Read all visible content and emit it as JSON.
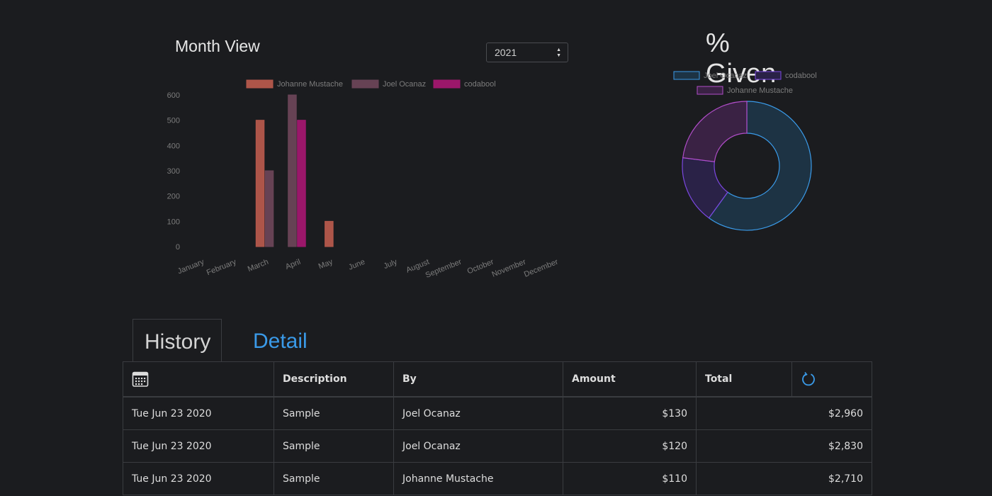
{
  "month_view": {
    "title": "Month View",
    "year_select": {
      "value": "2021"
    }
  },
  "given": {
    "title": "% Given"
  },
  "colors": {
    "background": "#1b1c1f",
    "accent": "#3a9ae8",
    "johanne": "#b5584c",
    "joel": "#6a4457",
    "codabool": "#a2176f"
  },
  "chart_data": [
    {
      "type": "bar",
      "categories": [
        "January",
        "February",
        "March",
        "April",
        "May",
        "June",
        "July",
        "August",
        "September",
        "October",
        "November",
        "December"
      ],
      "series": [
        {
          "name": "Johanne Mustache",
          "values": [
            0,
            0,
            500,
            0,
            100,
            0,
            0,
            0,
            0,
            0,
            0,
            0
          ]
        },
        {
          "name": "Joel Ocanaz",
          "values": [
            0,
            0,
            300,
            600,
            0,
            0,
            0,
            0,
            0,
            0,
            0,
            0
          ]
        },
        {
          "name": "codabool",
          "values": [
            0,
            0,
            0,
            500,
            0,
            0,
            0,
            0,
            0,
            0,
            0,
            0
          ]
        }
      ],
      "y_ticks": [
        0,
        100,
        200,
        300,
        400,
        500,
        600
      ],
      "ylim": [
        0,
        600
      ],
      "grid": false,
      "legend": "top"
    },
    {
      "type": "pie",
      "variant": "doughnut",
      "labels": [
        "Joel Ocanaz",
        "codabool",
        "Johanne Mustache"
      ],
      "values": [
        60,
        17,
        23
      ],
      "legend": "top"
    }
  ],
  "tabs": [
    {
      "label": "History",
      "active": true
    },
    {
      "label": "Detail",
      "active": false
    }
  ],
  "table": {
    "headers": [
      "",
      "Description",
      "By",
      "Amount",
      "Total",
      ""
    ],
    "header_icons": {
      "date": "calendar-icon",
      "refresh": "refresh-icon"
    },
    "rows": [
      {
        "date": "Tue Jun 23 2020",
        "description": "Sample",
        "by": "Joel Ocanaz",
        "amount": "$130",
        "total": "$2,960"
      },
      {
        "date": "Tue Jun 23 2020",
        "description": "Sample",
        "by": "Joel Ocanaz",
        "amount": "$120",
        "total": "$2,830"
      },
      {
        "date": "Tue Jun 23 2020",
        "description": "Sample",
        "by": "Johanne Mustache",
        "amount": "$110",
        "total": "$2,710"
      }
    ]
  }
}
